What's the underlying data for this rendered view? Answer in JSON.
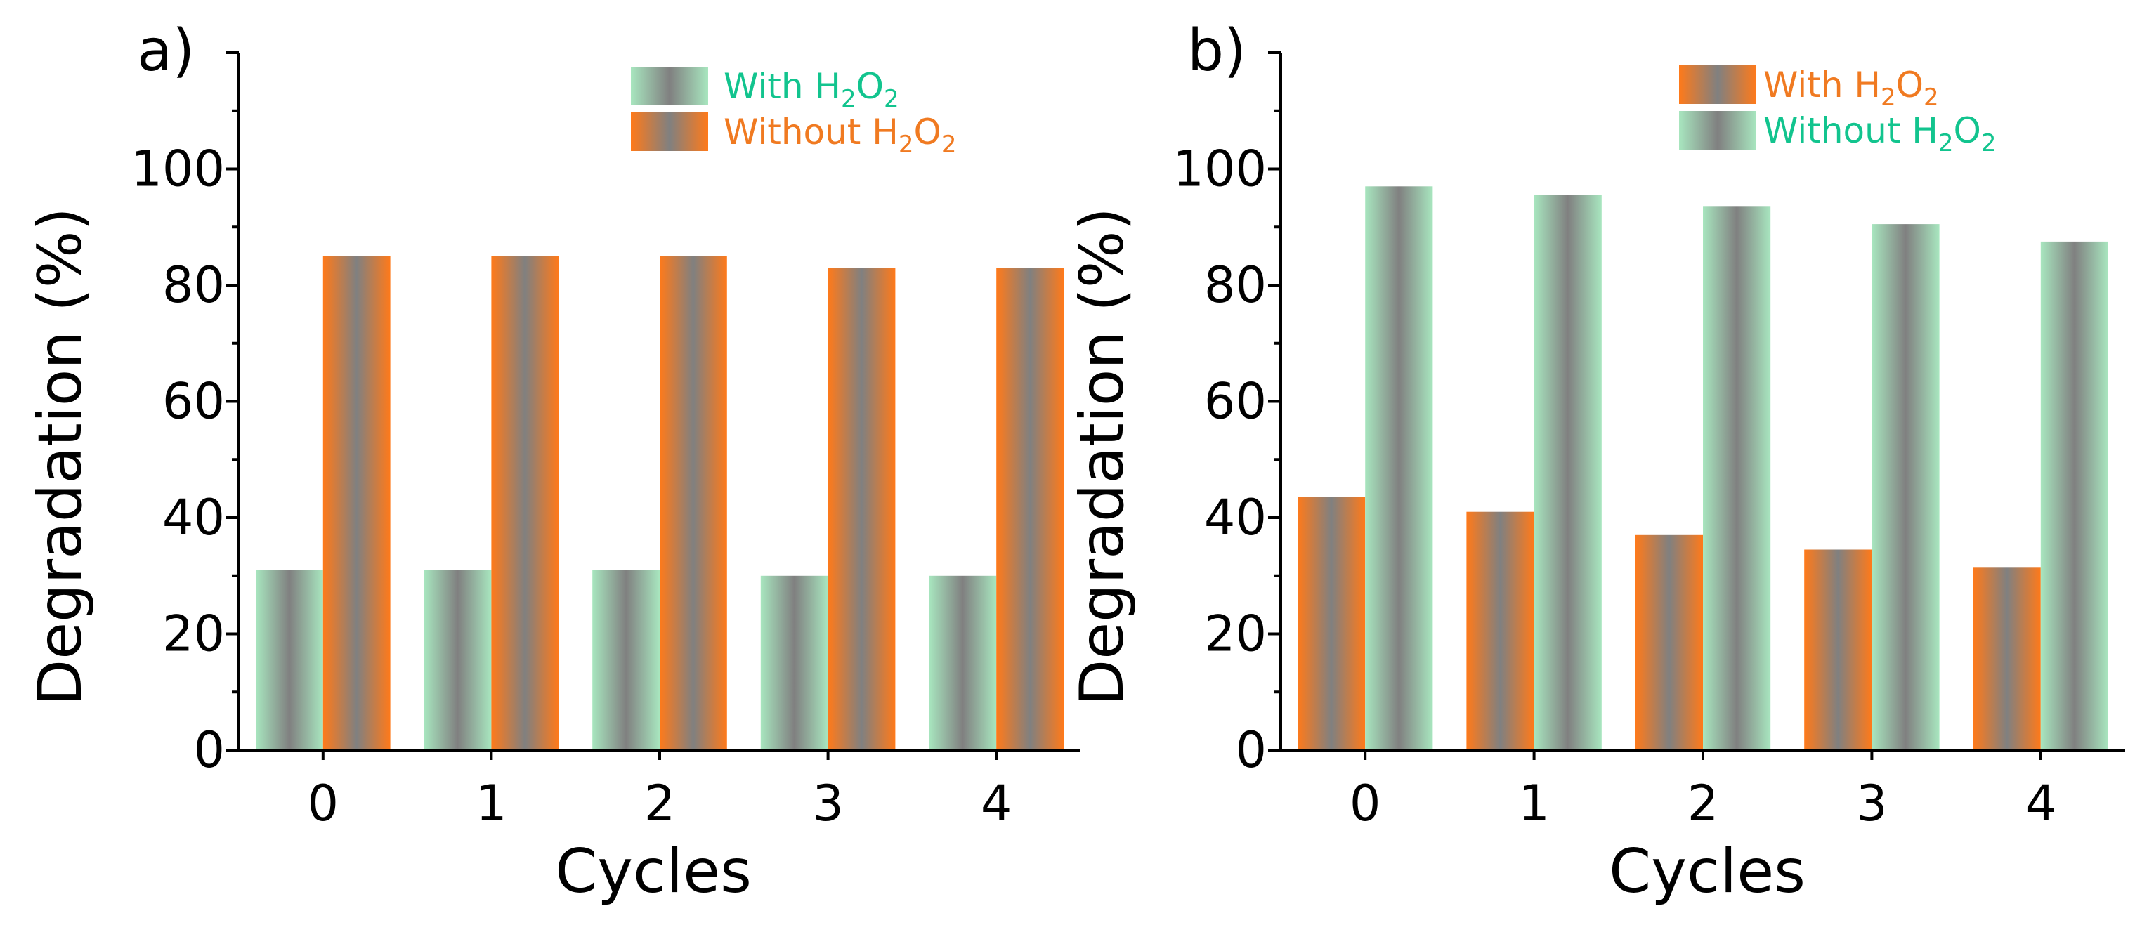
{
  "colors": {
    "green": "#a8e6bf",
    "green_text": "#12c48e",
    "orange": "#ff7a1a",
    "orange_text": "#f07a21",
    "gray": "#808080",
    "axis": "#000000"
  },
  "chart_data": [
    {
      "type": "bar",
      "panel_label": "a)",
      "xlabel": "Cycles",
      "ylabel": "Degradation (%)",
      "categories": [
        "0",
        "1",
        "2",
        "3",
        "4"
      ],
      "ylim": [
        0,
        120
      ],
      "yticks": [
        "0",
        "20",
        "40",
        "60",
        "80",
        "100"
      ],
      "legend_position": "top-right",
      "series": [
        {
          "name": "With H2O2",
          "legend_main": "With H",
          "legend_sub1": "2",
          "legend_mid": "O",
          "legend_sub2": "2",
          "color_key": "green",
          "values": [
            31,
            31,
            31,
            30,
            30
          ]
        },
        {
          "name": "Without H2O2",
          "legend_main": "Without H",
          "legend_sub1": "2",
          "legend_mid": "O",
          "legend_sub2": "2",
          "color_key": "orange",
          "values": [
            85,
            85,
            85,
            83,
            83
          ]
        }
      ]
    },
    {
      "type": "bar",
      "panel_label": "b)",
      "xlabel": "Cycles",
      "ylabel": "Degradation (%)",
      "categories": [
        "0",
        "1",
        "2",
        "3",
        "4"
      ],
      "ylim": [
        0,
        120
      ],
      "yticks": [
        "0",
        "20",
        "40",
        "60",
        "80",
        "100"
      ],
      "legend_position": "top-right",
      "series": [
        {
          "name": "With H2O2",
          "legend_main": "With H",
          "legend_sub1": "2",
          "legend_mid": "O",
          "legend_sub2": "2",
          "color_key": "orange",
          "values": [
            43.5,
            41,
            37,
            34.5,
            31.5
          ]
        },
        {
          "name": "Without H2O2",
          "legend_main": "Without H",
          "legend_sub1": "2",
          "legend_mid": "O",
          "legend_sub2": "2",
          "color_key": "green",
          "values": [
            97,
            95.5,
            93.5,
            90.5,
            87.5
          ]
        }
      ]
    }
  ]
}
